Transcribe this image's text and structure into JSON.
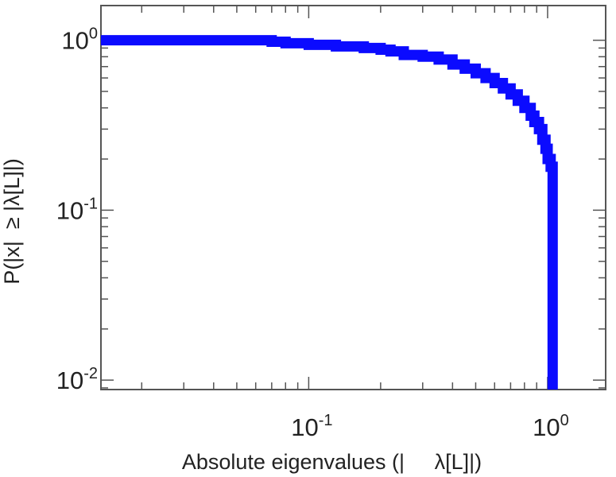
{
  "chart_data": {
    "type": "line",
    "xscale": "log",
    "yscale": "log",
    "xlim": [
      0.0135,
      1.75
    ],
    "ylim": [
      0.0088,
      1.6
    ],
    "xlabel": "Absolute eigenvalues (|     λ[L]|)",
    "ylabel": "P(|x|  ≥ |λ[L]|)",
    "x_ticks": [
      {
        "base": "10",
        "exp": "-1",
        "value": 0.1
      },
      {
        "base": "10",
        "exp": "0",
        "value": 1
      }
    ],
    "y_ticks": [
      {
        "base": "10",
        "exp": "0",
        "value": 1
      },
      {
        "base": "10",
        "exp": "-1",
        "value": 0.1
      },
      {
        "base": "10",
        "exp": "-2",
        "value": 0.01
      }
    ],
    "grid": false,
    "legend": "none",
    "colors": {
      "series": "#0b0bff",
      "axes": "#555555",
      "text": "#222222"
    },
    "series": [
      {
        "x": [
          0.0135,
          0.02,
          0.03,
          0.05,
          0.065,
          0.07,
          0.08,
          0.1,
          0.13,
          0.17,
          0.2,
          0.22,
          0.25,
          0.3,
          0.35,
          0.4,
          0.45,
          0.5,
          0.55,
          0.6,
          0.65,
          0.7,
          0.75,
          0.8,
          0.85,
          0.88,
          0.92,
          0.95,
          0.98,
          1.0,
          1.03,
          1.05,
          1.05,
          1.05
        ],
        "y": [
          1.0,
          1.0,
          1.0,
          1.0,
          1.0,
          0.98,
          0.96,
          0.94,
          0.92,
          0.9,
          0.88,
          0.86,
          0.82,
          0.8,
          0.77,
          0.72,
          0.68,
          0.64,
          0.6,
          0.56,
          0.52,
          0.48,
          0.44,
          0.4,
          0.36,
          0.33,
          0.3,
          0.26,
          0.23,
          0.2,
          0.18,
          0.17,
          0.05,
          0.0088
        ]
      }
    ]
  }
}
